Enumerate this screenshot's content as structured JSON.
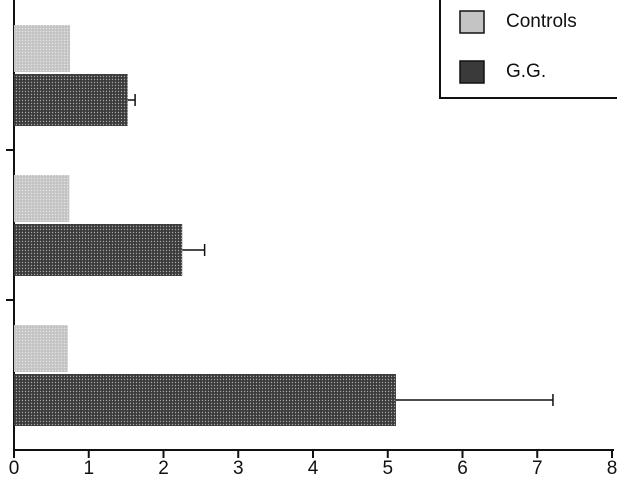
{
  "chart_data": {
    "type": "barh",
    "categories": [
      null,
      null,
      null
    ],
    "series": [
      {
        "name": "Controls",
        "color": "#c4c4c4",
        "values": [
          0.75,
          0.74,
          0.72
        ]
      },
      {
        "name": "G.G.",
        "color": "#3a3a3a",
        "values": [
          1.52,
          2.25,
          5.11
        ],
        "errors": [
          0.1,
          0.3,
          2.1
        ]
      }
    ],
    "xlim": [
      0,
      8
    ],
    "xticks": [
      0,
      1,
      2,
      3,
      4,
      5,
      6,
      7,
      8
    ],
    "legend": "upper right"
  }
}
